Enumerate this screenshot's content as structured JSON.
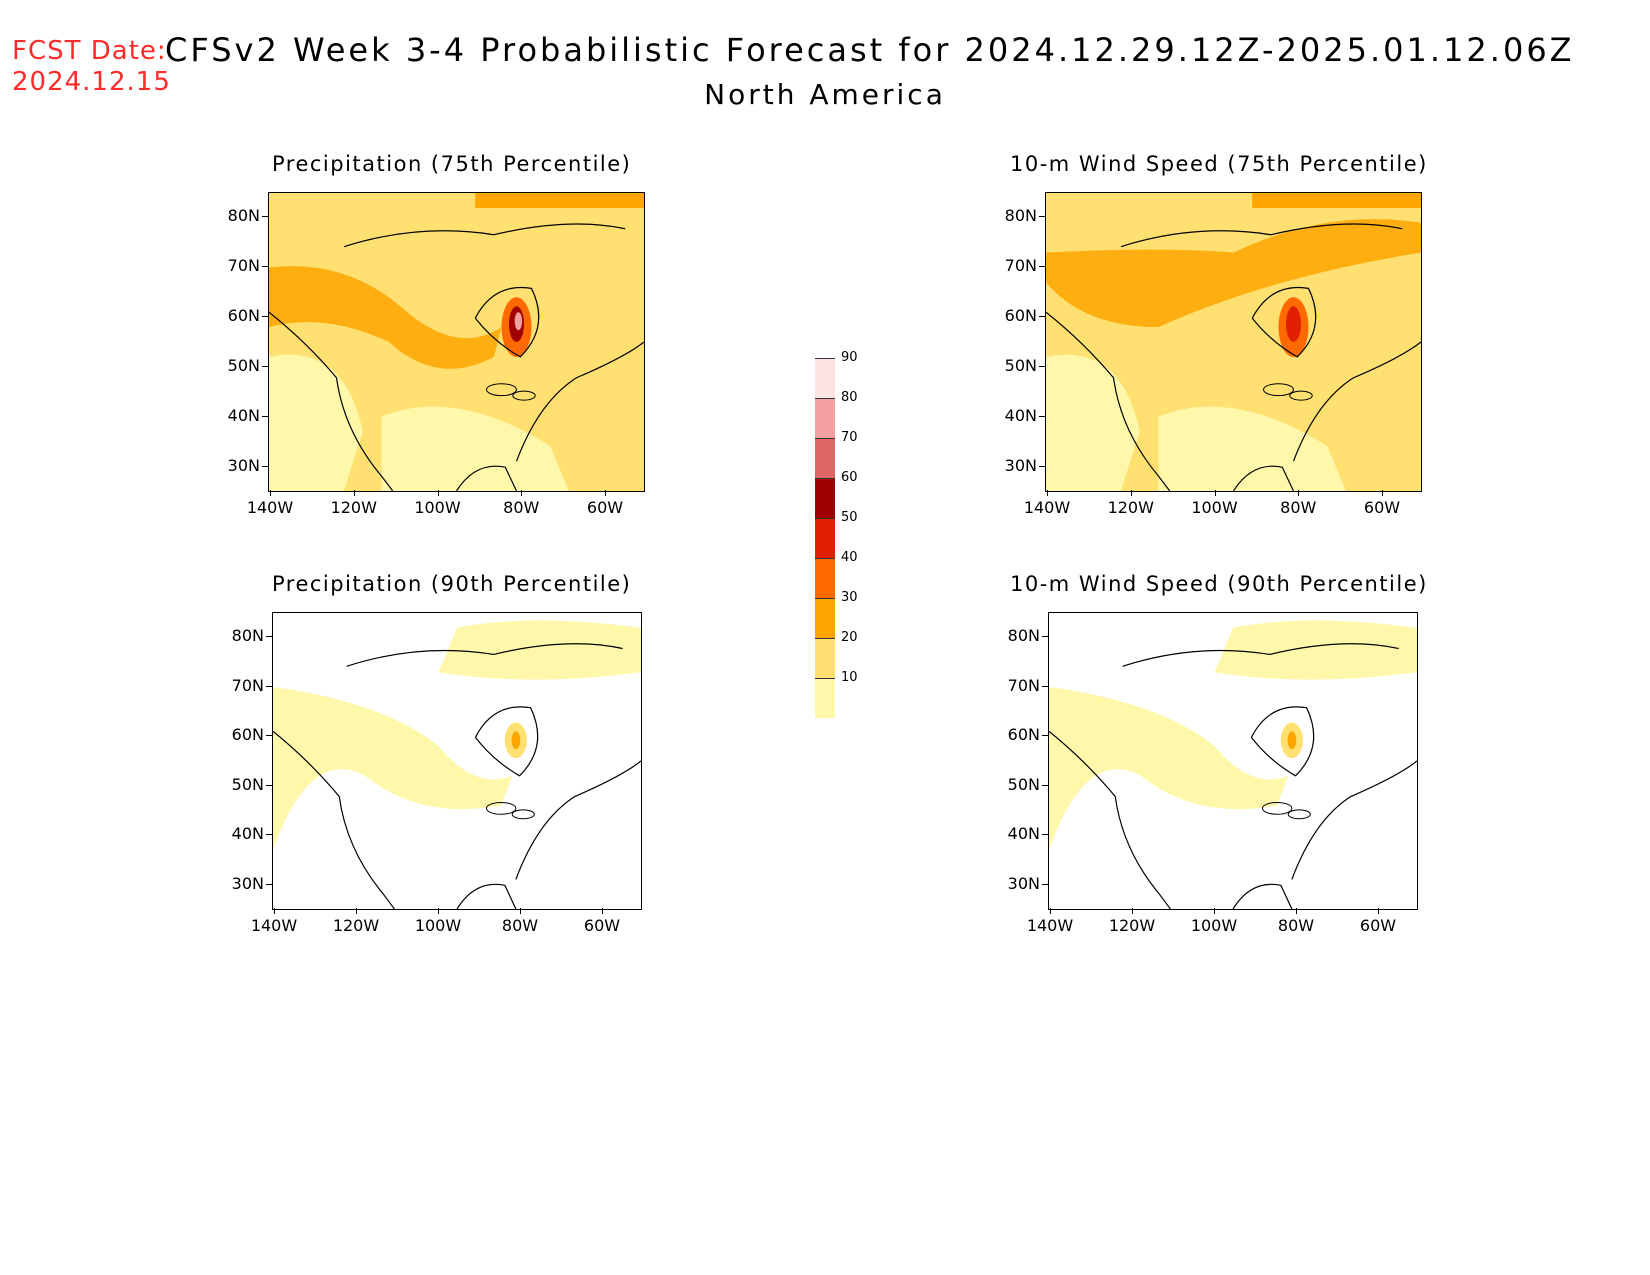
{
  "header": {
    "fcst_label": "FCST Date:",
    "fcst_date": "2024.12.15",
    "title": "CFSv2 Week 3-4 Probabilistic Forecast for 2024.12.29.12Z-2025.01.12.06Z",
    "region": "North America"
  },
  "panels": [
    {
      "title": "Precipitation (75th Percentile)",
      "variable": "precipitation",
      "percentile": 75,
      "dominant_level": "20-30"
    },
    {
      "title": "10-m Wind Speed (75th Percentile)",
      "variable": "wind",
      "percentile": 75,
      "dominant_level": "20-30"
    },
    {
      "title": "Precipitation (90th Percentile)",
      "variable": "precipitation",
      "percentile": 90,
      "dominant_level": "10-20"
    },
    {
      "title": "10-m Wind Speed (90th Percentile)",
      "variable": "wind",
      "percentile": 90,
      "dominant_level": "10-20"
    }
  ],
  "axes": {
    "lat_labels": [
      "80N",
      "70N",
      "60N",
      "50N",
      "40N",
      "30N"
    ],
    "lon_labels": [
      "140W",
      "120W",
      "100W",
      "80W",
      "60W"
    ]
  },
  "colorbar": {
    "levels": [
      "90",
      "80",
      "70",
      "60",
      "50",
      "40",
      "30",
      "20",
      "10"
    ],
    "colors": [
      "#fde4e4",
      "#f4a0a0",
      "#e06666",
      "#a00000",
      "#e02000",
      "#ff6a00",
      "#ffa500",
      "#ffe070",
      "#fff8ab"
    ]
  }
}
